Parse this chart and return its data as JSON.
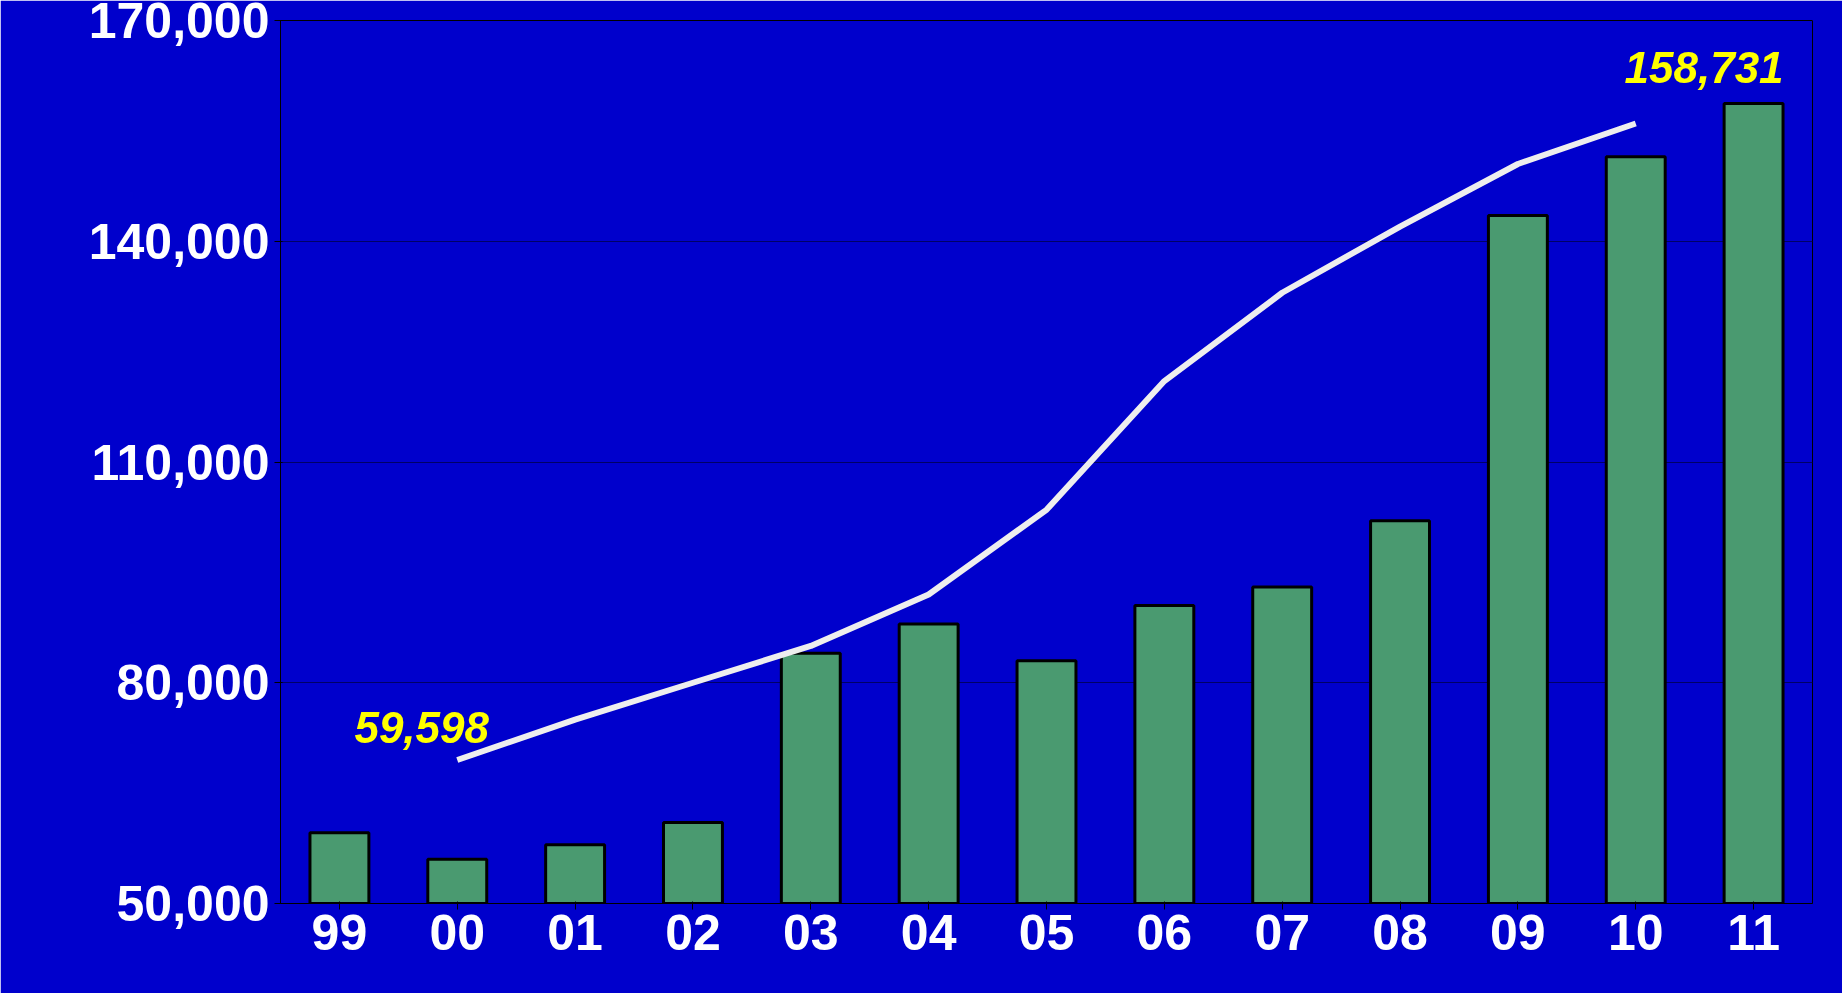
{
  "chart_data": {
    "type": "bar",
    "categories": [
      "99",
      "00",
      "01",
      "02",
      "03",
      "04",
      "05",
      "06",
      "07",
      "08",
      "09",
      "10",
      "11"
    ],
    "series": [
      {
        "color": "#4a9a70",
        "values": [
          59598,
          56000,
          58000,
          61000,
          84000,
          88000,
          83000,
          90500,
          93000,
          102000,
          143500,
          151500,
          158731
        ]
      },
      {
        "type": "line",
        "color": "#eeeeee",
        "values": [
          null,
          69500,
          75000,
          80000,
          85000,
          92000,
          103500,
          121000,
          133000,
          142000,
          150500,
          156000,
          null
        ]
      }
    ],
    "ylim": [
      50000,
      170000
    ],
    "yticks": [
      {
        "value": 50000,
        "label": "50,000"
      },
      {
        "value": 80000,
        "label": "80,000"
      },
      {
        "value": 110000,
        "label": "110,000"
      },
      {
        "value": 140000,
        "label": "140,000"
      },
      {
        "value": 170000,
        "label": "170,000"
      }
    ],
    "grid": "y",
    "annotations": [
      {
        "text": "59,598",
        "x": "99",
        "y": 59598
      },
      {
        "text": "158,731",
        "x": "11",
        "y": 158731
      }
    ]
  }
}
